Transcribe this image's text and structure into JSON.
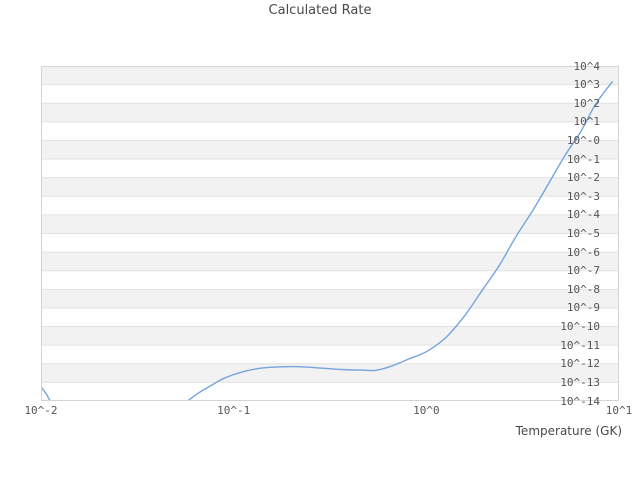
{
  "chart": {
    "title": "Calculated Rate",
    "x_axis": {
      "label": "Temperature (GK)",
      "tick_labels": [
        "10^-2",
        "10^-1",
        "10^0",
        "10^1"
      ]
    },
    "y_axis": {
      "tick_labels": [
        "10^4",
        "10^3",
        "10^2",
        "10^1",
        "10^-0",
        "10^-1",
        "10^-2",
        "10^-3",
        "10^-4",
        "10^-5",
        "10^-6",
        "10^-7",
        "10^-8",
        "10^-9",
        "10^-10",
        "10^-11",
        "10^-12",
        "10^-13",
        "10^-14"
      ]
    }
  },
  "colors": {
    "band": "#f2f2f2",
    "gridline": "#e2e2e2",
    "border": "#d4d4d4",
    "line": "#76a4dc",
    "text": "#4a4a4a",
    "tick_text": "#555555",
    "background": "#ffffff"
  },
  "chart_data": {
    "type": "line",
    "title": "Calculated Rate",
    "xlabel": "Temperature (GK)",
    "ylabel": "",
    "x_scale": "log10",
    "y_scale": "log10",
    "xlim_exp": [
      -2,
      1
    ],
    "ylim_exp": [
      -14,
      4
    ],
    "grid": "alternating horizontal decade bands, no vertical gridlines",
    "legend": "none",
    "series": [
      {
        "name": "Calculated Rate",
        "color": "#76a4dc",
        "points_log10": [
          [
            -2.0,
            -13.25
          ],
          [
            -1.97,
            -13.66
          ],
          [
            -1.95,
            -14.02
          ],
          [
            -1.88,
            -14.8
          ],
          [
            -1.75,
            -15.25
          ],
          [
            -1.6,
            -15.3
          ],
          [
            -1.45,
            -14.95
          ],
          [
            -1.33,
            -14.45
          ],
          [
            -1.244,
            -14.02
          ],
          [
            -1.19,
            -13.62
          ],
          [
            -1.12,
            -13.19
          ],
          [
            -1.05,
            -12.78
          ],
          [
            -0.96,
            -12.45
          ],
          [
            -0.86,
            -12.24
          ],
          [
            -0.75,
            -12.16
          ],
          [
            -0.65,
            -12.16
          ],
          [
            -0.55,
            -12.23
          ],
          [
            -0.44,
            -12.31
          ],
          [
            -0.34,
            -12.34
          ],
          [
            -0.26,
            -12.35
          ],
          [
            -0.18,
            -12.12
          ],
          [
            -0.09,
            -11.74
          ],
          [
            0.0,
            -11.35
          ],
          [
            0.1,
            -10.6
          ],
          [
            0.2,
            -9.4
          ],
          [
            0.29,
            -8.05
          ],
          [
            0.38,
            -6.7
          ],
          [
            0.46,
            -5.25
          ],
          [
            0.55,
            -3.8
          ],
          [
            0.63,
            -2.4
          ],
          [
            0.72,
            -0.8
          ],
          [
            0.8,
            0.45
          ],
          [
            0.87,
            1.8
          ],
          [
            0.92,
            2.55
          ],
          [
            0.965,
            3.15
          ]
        ]
      }
    ]
  }
}
